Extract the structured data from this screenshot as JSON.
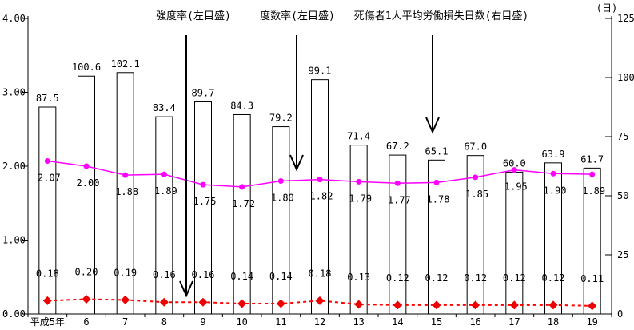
{
  "chart_data": {
    "type": "bar",
    "categories": [
      "平成5年",
      "6",
      "7",
      "8",
      "9",
      "10",
      "11",
      "12",
      "13",
      "14",
      "15",
      "16",
      "17",
      "18",
      "19"
    ],
    "series": [
      {
        "name": "死傷者1人平均労働損失日数(右目盛)",
        "chart_type": "bar",
        "axis": "right",
        "bar_fill": "#ffffff",
        "bar_stroke": "#000000",
        "values": [
          87.5,
          100.6,
          102.1,
          83.4,
          89.7,
          84.3,
          79.2,
          99.1,
          71.4,
          67.2,
          65.1,
          67.0,
          60.0,
          63.9,
          61.7
        ]
      },
      {
        "name": "度数率(左目盛)",
        "chart_type": "line",
        "axis": "left",
        "color": "#ff00ff",
        "marker": "circle",
        "dashed": false,
        "values": [
          2.07,
          2.0,
          1.88,
          1.89,
          1.75,
          1.72,
          1.8,
          1.82,
          1.79,
          1.77,
          1.78,
          1.85,
          1.95,
          1.9,
          1.89
        ]
      },
      {
        "name": "強度率(左目盛)",
        "chart_type": "line",
        "axis": "left",
        "color": "#ff0000",
        "marker_color": "#ee0000",
        "marker": "diamond",
        "dashed": true,
        "values": [
          0.18,
          0.2,
          0.19,
          0.16,
          0.16,
          0.14,
          0.14,
          0.18,
          0.13,
          0.12,
          0.12,
          0.12,
          0.12,
          0.12,
          0.11
        ]
      }
    ],
    "left_axis": {
      "min": 0,
      "max": 4,
      "tick_labels": [
        "4.00",
        "3.00",
        "2.00",
        "1.00",
        "0.00"
      ]
    },
    "right_axis": {
      "min": 0,
      "max": 125,
      "tick_labels": [
        "125",
        "100",
        "75",
        "50",
        "25",
        "0"
      ],
      "unit": "(日)"
    },
    "grid": "off",
    "legend_position": "none",
    "annotations": [
      {
        "text": "強度率(左目盛)",
        "text_cx": 242,
        "arrow_x": 233,
        "arrow_top": 44,
        "arrow_tip": 370
      },
      {
        "text": "度数率(左目盛)",
        "text_cx": 372,
        "arrow_x": 371,
        "arrow_top": 44,
        "arrow_tip": 212
      },
      {
        "text": "死傷者1人平均労働損失日数(右目盛)",
        "text_cx": 552,
        "arrow_x": 541,
        "arrow_top": 44,
        "arrow_tip": 165
      }
    ]
  }
}
